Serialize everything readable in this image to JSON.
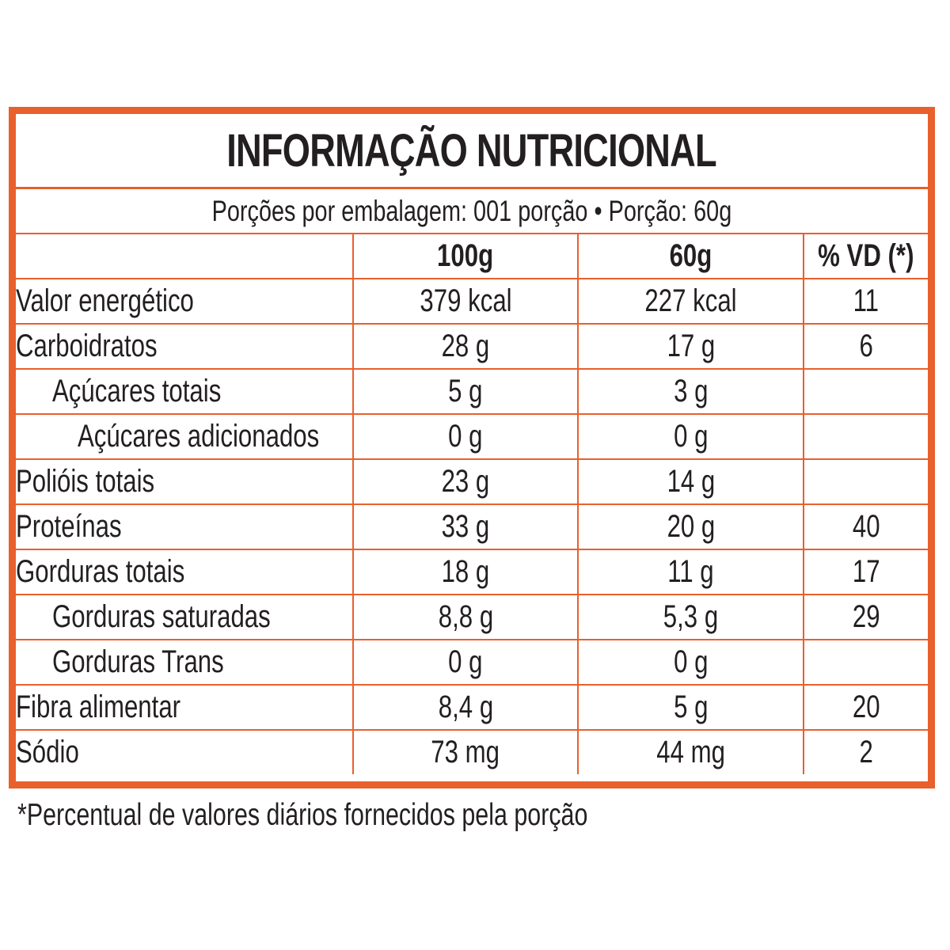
{
  "title": "INFORMAÇÃO NUTRICIONAL",
  "portion_line": "Porções por embalagem: 001 porção • Porção: 60g",
  "columns": {
    "per100": "100g",
    "per60": "60g",
    "vd": "% VD (*)"
  },
  "rows": [
    {
      "name": "Valor energético",
      "v100": "379 kcal",
      "v60": "227 kcal",
      "vd": "11"
    },
    {
      "name": "Carboidratos",
      "v100": "28 g",
      "v60": "17 g",
      "vd": "6"
    },
    {
      "name": "Açúcares totais",
      "v100": "5 g",
      "v60": "3 g",
      "vd": ""
    },
    {
      "name": "Açúcares adicionados",
      "v100": "0 g",
      "v60": "0 g",
      "vd": ""
    },
    {
      "name": "Polióis totais",
      "v100": "23 g",
      "v60": "14 g",
      "vd": ""
    },
    {
      "name": "Proteínas",
      "v100": "33 g",
      "v60": "20 g",
      "vd": "40"
    },
    {
      "name": "Gorduras totais",
      "v100": "18 g",
      "v60": "11 g",
      "vd": "17"
    },
    {
      "name": "Gorduras saturadas",
      "v100": "8,8 g",
      "v60": "5,3 g",
      "vd": "29"
    },
    {
      "name": "Gorduras Trans",
      "v100": "0 g",
      "v60": "0 g",
      "vd": ""
    },
    {
      "name": "Fibra alimentar",
      "v100": "8,4 g",
      "v60": "5 g",
      "vd": "20"
    },
    {
      "name": "Sódio",
      "v100": "73 mg",
      "v60": "44 mg",
      "vd": "2"
    }
  ],
  "footnote": "*Percentual de valores diários fornecidos pela porção",
  "colors": {
    "accent": "#e8602c",
    "text": "#231f20",
    "background": "#ffffff"
  }
}
